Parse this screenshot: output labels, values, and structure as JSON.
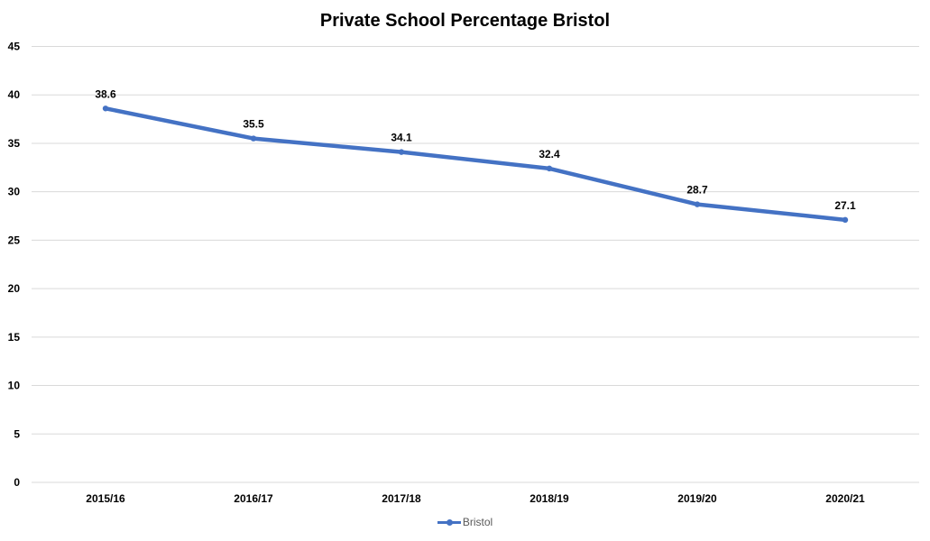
{
  "chart_data": {
    "type": "line",
    "title": "Private School Percentage Bristol",
    "xlabel": "",
    "ylabel": "",
    "categories": [
      "2015/16",
      "2016/17",
      "2017/18",
      "2018/19",
      "2019/20",
      "2020/21"
    ],
    "series": [
      {
        "name": "Bristol",
        "values": [
          38.6,
          35.5,
          34.1,
          32.4,
          28.7,
          27.1
        ],
        "labels": [
          "38.6",
          "35.5",
          "34.1",
          "32.4",
          "28.7",
          "27.1"
        ]
      }
    ],
    "ylim": [
      0,
      45
    ],
    "yticks": [
      "0",
      "5",
      "10",
      "15",
      "20",
      "25",
      "30",
      "35",
      "40",
      "45"
    ],
    "ytick_values": [
      0,
      5,
      10,
      15,
      20,
      25,
      30,
      35,
      40,
      45
    ],
    "grid": true,
    "legend_position": "bottom",
    "colors": {
      "series": "#4472C4",
      "grid": "#D9D9D9",
      "axis_text": "#000000",
      "legend_text": "#595959"
    }
  }
}
